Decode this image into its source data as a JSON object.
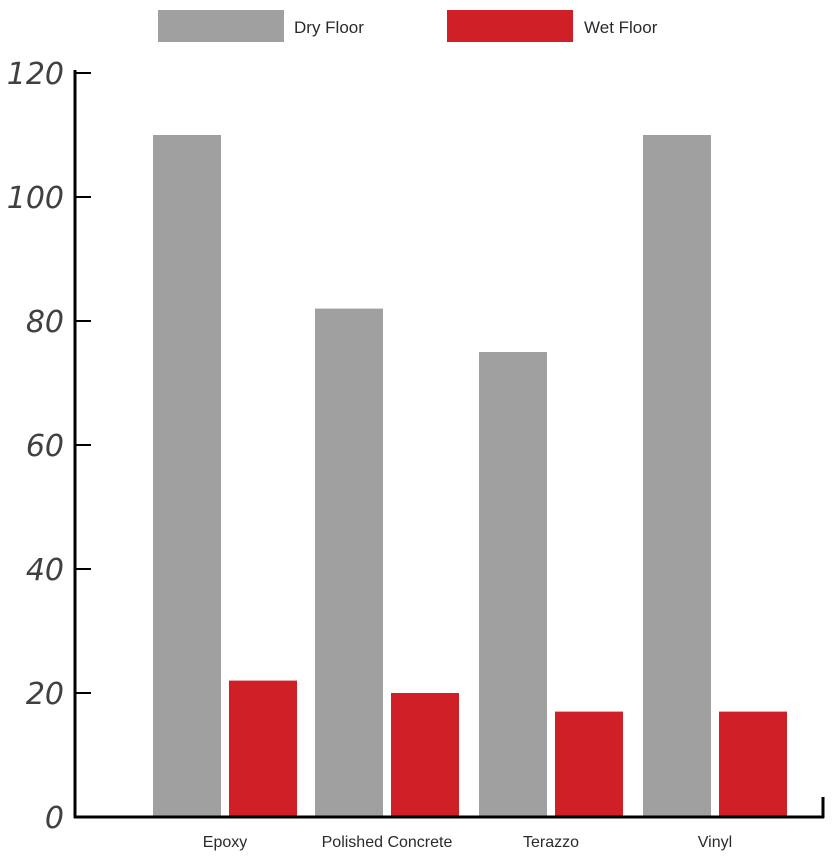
{
  "chart_data": {
    "type": "bar",
    "categories": [
      "Epoxy",
      "Polished Concrete",
      "Terazzo",
      "Vinyl"
    ],
    "series": [
      {
        "name": "Dry Floor",
        "values": [
          110,
          82,
          75,
          110
        ],
        "color": "#a0a0a0"
      },
      {
        "name": "Wet Floor",
        "values": [
          22,
          20,
          17,
          17
        ],
        "color": "#cf2027"
      }
    ],
    "yticks": [
      0,
      20,
      40,
      60,
      80,
      100,
      120
    ],
    "ylim": [
      0,
      120
    ],
    "legend_position": "top-center",
    "grid": false,
    "axis_color": "#000000"
  }
}
